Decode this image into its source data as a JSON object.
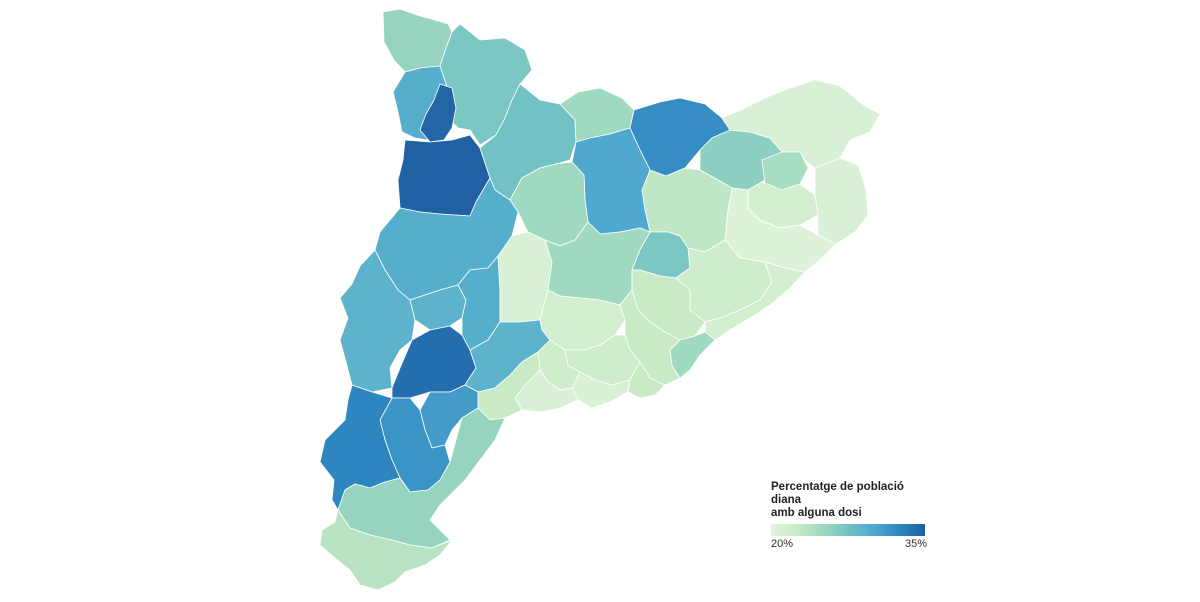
{
  "legend": {
    "title_line1": "Percentatge de població diana",
    "title_line2": "amb alguna dosi",
    "min_label": "20%",
    "max_label": "35%",
    "min_value": 20,
    "max_value": 35
  },
  "colors": {
    "scale": [
      "#e3f4df",
      "#c8ebc6",
      "#9fd9bf",
      "#72c2c5",
      "#4fa9cf",
      "#2e86c0",
      "#1f5ea0"
    ],
    "background": "#ffffff"
  },
  "regions": [
    {
      "id": "val-d-aran",
      "value": 25.5
    },
    {
      "id": "pallars-sobira",
      "value": 27.0
    },
    {
      "id": "alta-ribagorca-north",
      "value": 29.5
    },
    {
      "id": "alta-ribagorca-south",
      "value": 34.5
    },
    {
      "id": "pallars-jussa",
      "value": 34.8
    },
    {
      "id": "alt-urgell",
      "value": 27.5
    },
    {
      "id": "cerdanya",
      "value": 25.0
    },
    {
      "id": "ripolles",
      "value": 32.0
    },
    {
      "id": "garrotxa",
      "value": 26.0
    },
    {
      "id": "alt-emporda",
      "value": 21.0
    },
    {
      "id": "pla-de-l-estany",
      "value": 24.5
    },
    {
      "id": "girones",
      "value": 21.5
    },
    {
      "id": "baix-emporda",
      "value": 21.0
    },
    {
      "id": "selva",
      "value": 20.5
    },
    {
      "id": "osona",
      "value": 23.0
    },
    {
      "id": "bergueda",
      "value": 30.0
    },
    {
      "id": "solsones",
      "value": 25.0
    },
    {
      "id": "noguera",
      "value": 29.5
    },
    {
      "id": "segria",
      "value": 29.0
    },
    {
      "id": "garrigues",
      "value": 34.0
    },
    {
      "id": "pla-d-urgell",
      "value": 29.0
    },
    {
      "id": "urgell",
      "value": 29.5
    },
    {
      "id": "segarra",
      "value": 21.0
    },
    {
      "id": "bages",
      "value": 25.0
    },
    {
      "id": "moianes",
      "value": 27.0
    },
    {
      "id": "valles-oriental",
      "value": 22.0
    },
    {
      "id": "maresme",
      "value": 21.5
    },
    {
      "id": "valles-occidental",
      "value": 22.5
    },
    {
      "id": "barcelones",
      "value": 25.0
    },
    {
      "id": "anoia",
      "value": 21.5
    },
    {
      "id": "baix-llobregat",
      "value": 22.5
    },
    {
      "id": "alt-penedes",
      "value": 22.0
    },
    {
      "id": "garraf",
      "value": 22.5
    },
    {
      "id": "baix-penedes",
      "value": 21.0
    },
    {
      "id": "alt-camp",
      "value": 22.0
    },
    {
      "id": "conca-de-barbera",
      "value": 29.0
    },
    {
      "id": "tarragones",
      "value": 21.0
    },
    {
      "id": "priorat",
      "value": 31.0
    },
    {
      "id": "baix-camp",
      "value": 22.5
    },
    {
      "id": "ribera-d-ebre",
      "value": 31.5
    },
    {
      "id": "terra-alta",
      "value": 32.5
    },
    {
      "id": "baix-ebre",
      "value": 25.5
    },
    {
      "id": "montsia",
      "value": 23.5
    }
  ]
}
